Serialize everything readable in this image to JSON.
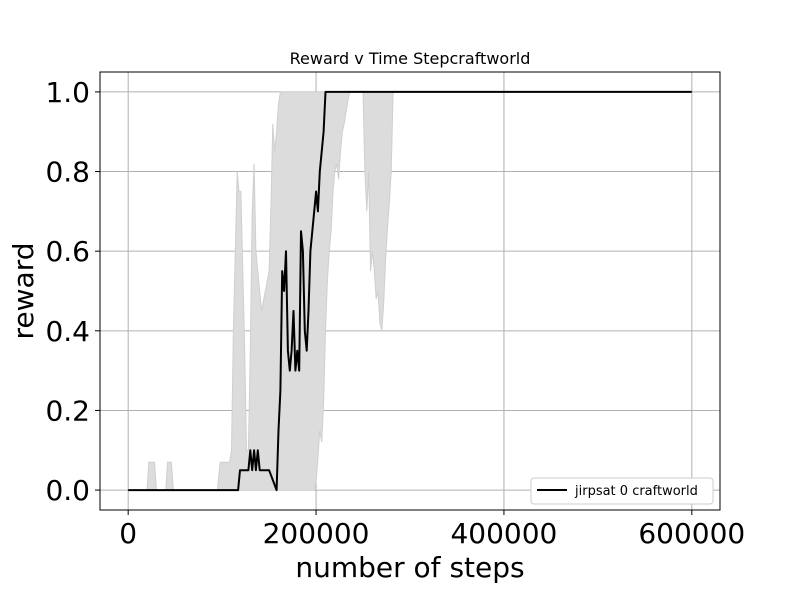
{
  "chart_data": {
    "type": "line",
    "title": "Reward v Time Stepcraftworld",
    "xlabel": "number of steps",
    "ylabel": "reward",
    "xlim": [
      -30000,
      630000
    ],
    "ylim": [
      -0.05,
      1.05
    ],
    "xticks": [
      0,
      200000,
      400000,
      600000
    ],
    "xtick_labels": [
      "0",
      "200000",
      "400000",
      "600000"
    ],
    "yticks": [
      0.0,
      0.2,
      0.4,
      0.6,
      0.8,
      1.0
    ],
    "ytick_labels": [
      "0.0",
      "0.2",
      "0.4",
      "0.6",
      "0.8",
      "1.0"
    ],
    "grid": true,
    "legend_position": "lower right",
    "series": [
      {
        "name": "jirpsat 0 craftworld",
        "color": "#000000",
        "x": [
          0,
          20000,
          100000,
          117000,
          119000,
          126000,
          128000,
          130000,
          132000,
          134000,
          136000,
          138000,
          140000,
          142000,
          144000,
          150000,
          158000,
          160000,
          162000,
          164000,
          166000,
          168000,
          170000,
          172000,
          174000,
          176000,
          178000,
          180000,
          182000,
          184000,
          186000,
          188000,
          190000,
          192000,
          194000,
          196000,
          198000,
          200000,
          202000,
          204000,
          206000,
          208000,
          210000,
          212000,
          230000,
          260000,
          280000,
          300000,
          400000,
          500000,
          600000
        ],
        "y": [
          0,
          0,
          0,
          0,
          0.05,
          0.05,
          0.05,
          0.1,
          0.05,
          0.1,
          0.05,
          0.1,
          0.05,
          0.05,
          0.05,
          0.05,
          0.0,
          0.15,
          0.25,
          0.55,
          0.5,
          0.6,
          0.35,
          0.3,
          0.35,
          0.45,
          0.3,
          0.35,
          0.3,
          0.65,
          0.6,
          0.4,
          0.35,
          0.45,
          0.6,
          0.65,
          0.7,
          0.75,
          0.7,
          0.8,
          0.85,
          0.9,
          1.0,
          1.0,
          1.0,
          1.0,
          1.0,
          1.0,
          1.0,
          1.0,
          1.0
        ]
      }
    ],
    "band": {
      "color": "#dcdcdc",
      "x": [
        0,
        20000,
        22000,
        24000,
        26000,
        28000,
        30000,
        40000,
        42000,
        44000,
        46000,
        48000,
        50000,
        95000,
        98000,
        100000,
        108000,
        110000,
        112000,
        114000,
        116000,
        118000,
        120000,
        122000,
        124000,
        126000,
        128000,
        130000,
        132000,
        134000,
        136000,
        138000,
        140000,
        142000,
        146000,
        150000,
        152000,
        154000,
        156000,
        158000,
        160000,
        162000,
        164000,
        166000,
        168000,
        170000,
        172000,
        174000,
        176000,
        178000,
        180000,
        182000,
        184000,
        186000,
        188000,
        190000,
        192000,
        194000,
        196000,
        198000,
        200000,
        202000,
        204000,
        206000,
        208000,
        210000,
        212000,
        214000,
        216000,
        218000,
        220000,
        222000,
        224000,
        226000,
        228000,
        230000,
        232000,
        234000,
        236000,
        238000,
        240000,
        242000,
        244000,
        246000,
        250000,
        252000,
        254000,
        256000,
        258000,
        260000,
        262000,
        264000,
        266000,
        268000,
        270000,
        272000,
        274000,
        276000,
        278000,
        280000,
        282000,
        300000,
        600000
      ],
      "lower": [
        0,
        0,
        0,
        0,
        0,
        0,
        0,
        0,
        0,
        0,
        0,
        0,
        0,
        0,
        0,
        0,
        0,
        0,
        0,
        0,
        0,
        0,
        0,
        0,
        0,
        0,
        0,
        0,
        0,
        0,
        0,
        0,
        0,
        0,
        0,
        0,
        0,
        0,
        0,
        0,
        0,
        0,
        0,
        0,
        0,
        0,
        0,
        0,
        0,
        0,
        0,
        0,
        0,
        0,
        0,
        0,
        0,
        0,
        0,
        0,
        0.02,
        0.08,
        0.15,
        0.12,
        0.22,
        0.4,
        0.52,
        0.6,
        0.65,
        0.75,
        0.8,
        0.82,
        0.78,
        0.85,
        0.9,
        0.92,
        0.95,
        0.98,
        1.0,
        1.0,
        1.0,
        1.0,
        1.0,
        1.0,
        1.0,
        0.8,
        0.7,
        0.8,
        0.55,
        0.6,
        0.55,
        0.48,
        0.5,
        0.42,
        0.4,
        0.47,
        0.58,
        0.66,
        0.72,
        0.8,
        1.0,
        1.0,
        1.0
      ],
      "upper": [
        0,
        0,
        0.07,
        0.07,
        0.07,
        0.07,
        0.0,
        0,
        0.07,
        0.07,
        0.07,
        0.0,
        0,
        0,
        0.07,
        0.07,
        0.07,
        0.1,
        0.4,
        0.6,
        0.8,
        0.75,
        0.75,
        0.55,
        0.35,
        0.1,
        0.1,
        0.35,
        0.7,
        0.82,
        0.6,
        0.55,
        0.5,
        0.45,
        0.5,
        0.55,
        0.72,
        0.92,
        0.85,
        0.9,
        0.97,
        1.0,
        1.0,
        1.0,
        1.0,
        1.0,
        1.0,
        1.0,
        1.0,
        1.0,
        1.0,
        1.0,
        1.0,
        1.0,
        1.0,
        1.0,
        1.0,
        1.0,
        1.0,
        1.0,
        1.0,
        1.0,
        1.0,
        1.0,
        1.0,
        1.0,
        1.0,
        1.0,
        1.0,
        1.0,
        1.0,
        1.0,
        1.0,
        1.0,
        1.0,
        1.0,
        1.0,
        1.0,
        1.0,
        1.0,
        1.0,
        1.0,
        1.0,
        1.0,
        1.0,
        1.0,
        1.0,
        1.0,
        1.0,
        1.0,
        1.0,
        1.0,
        1.0,
        1.0,
        1.0,
        1.0,
        1.0,
        1.0,
        1.0,
        1.0,
        1.0,
        1.0,
        1.0
      ]
    }
  }
}
